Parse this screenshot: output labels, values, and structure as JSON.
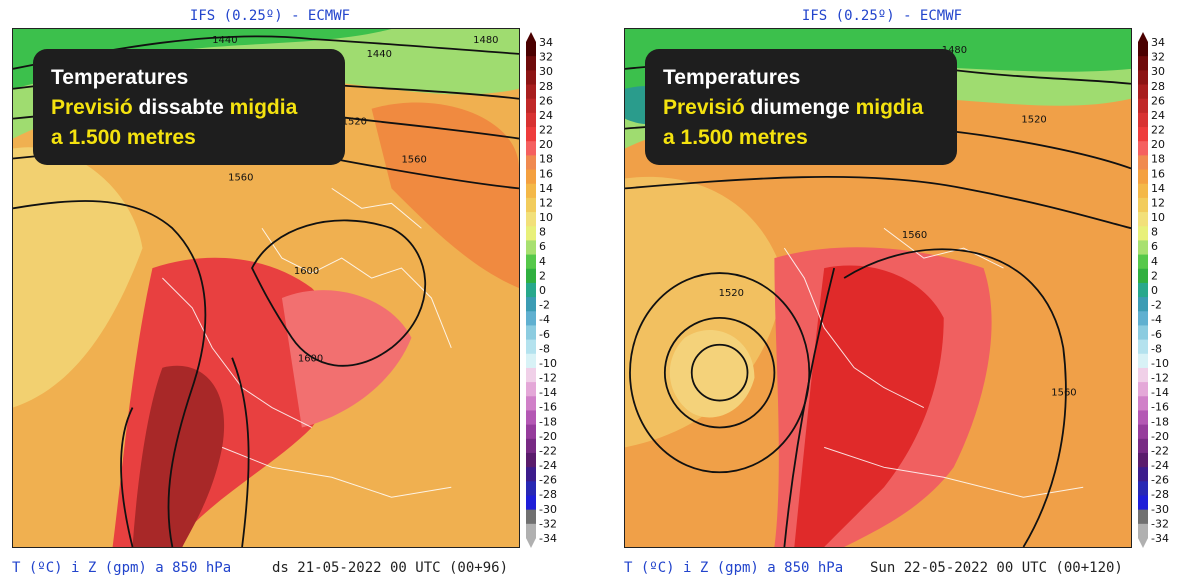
{
  "panels": [
    {
      "model_title": "IFS (0.25º) - ECMWF",
      "caption": {
        "line1": "Temperatures",
        "line2_y1": "Previsió",
        "line2_w": " dissabte ",
        "line2_y2": "migdia",
        "line3": "a 1.500 metres"
      },
      "contour_labels": [
        "1440",
        "1440",
        "1480",
        "1520",
        "1560",
        "1560",
        "1600",
        "1600"
      ],
      "footer_variable": "T (ºC) i Z (gpm) a 850 hPa",
      "footer_date": "ds 21-05-2022 00 UTC (00+96)"
    },
    {
      "model_title": "IFS (0.25º) - ECMWF",
      "caption": {
        "line1": "Temperatures",
        "line2_y1": "Previsió",
        "line2_w": " diumenge ",
        "line2_y2": "migdia",
        "line3": "a 1.500 metres"
      },
      "contour_labels": [
        "1480",
        "1520",
        "1520",
        "1560",
        "1560"
      ],
      "footer_variable": "T (ºC) i Z (gpm) a 850 hPa",
      "footer_date": "Sun 22-05-2022 00 UTC (00+120)"
    }
  ],
  "colorbar": {
    "ticks": [
      "34",
      "32",
      "30",
      "28",
      "26",
      "24",
      "22",
      "20",
      "18",
      "16",
      "14",
      "12",
      "10",
      "8",
      "6",
      "4",
      "2",
      "0",
      "-2",
      "-4",
      "-6",
      "-8",
      "-10",
      "-12",
      "-14",
      "-16",
      "-18",
      "-20",
      "-22",
      "-24",
      "-26",
      "-28",
      "-30",
      "-32",
      "-34"
    ],
    "colors": [
      "#4a0000",
      "#6e0a0a",
      "#8c1414",
      "#a81e1e",
      "#c02828",
      "#d83232",
      "#ee3c3c",
      "#f56060",
      "#f08a50",
      "#f4a040",
      "#f4b848",
      "#f2cc5c",
      "#f2e07a",
      "#e8f07a",
      "#a8e070",
      "#56c84a",
      "#30b040",
      "#28a88c",
      "#3c9cb4",
      "#60b0d0",
      "#8ccce0",
      "#b4e2ee",
      "#d8f2f6",
      "#f0d0e8",
      "#e4a8d8",
      "#d080c8",
      "#b458b4",
      "#963c9c",
      "#782a84",
      "#5a1c6c",
      "#3c1c8c",
      "#2828b4",
      "#1e1ed8",
      "#707070",
      "#b0b0b0"
    ]
  }
}
